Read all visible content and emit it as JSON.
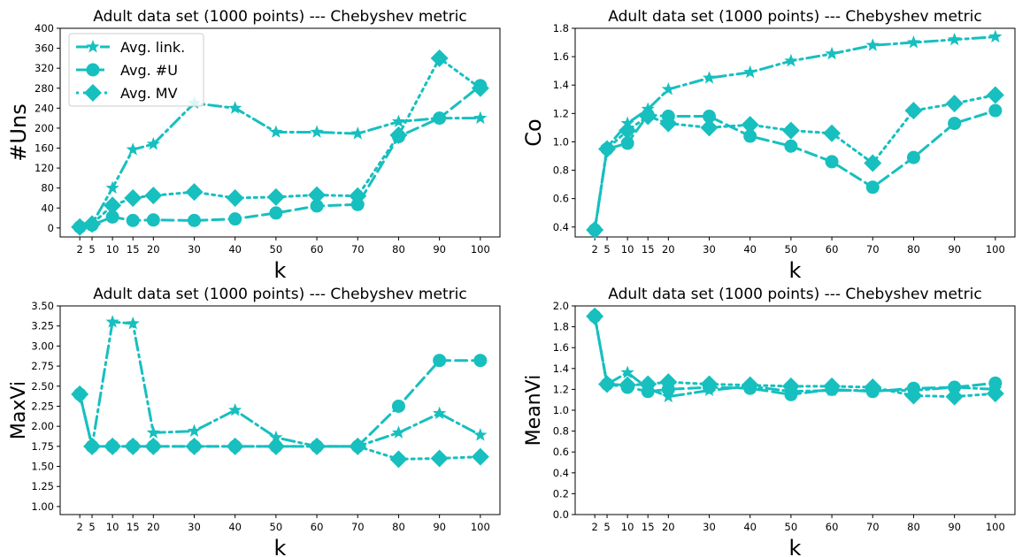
{
  "colors": {
    "series": "#17BFBF",
    "axis": "#000000",
    "background": "#ffffff"
  },
  "chart_data": [
    {
      "type": "line",
      "title": "Adult data set (1000 points) --- Chebyshev metric",
      "xlabel": "k",
      "ylabel": "#Uns",
      "x": [
        2,
        5,
        10,
        15,
        20,
        30,
        40,
        50,
        60,
        70,
        80,
        90,
        100
      ],
      "xticks": [
        2,
        5,
        10,
        15,
        20,
        30,
        40,
        50,
        60,
        70,
        80,
        90,
        100
      ],
      "yticks": [
        "0",
        "40",
        "80",
        "120",
        "160",
        "200",
        "240",
        "280",
        "320",
        "360",
        "400"
      ],
      "ylim": [
        -18,
        400
      ],
      "legend": "top-left",
      "grid": false,
      "series": [
        {
          "name": "Avg. link.",
          "linestyle": "dashdot",
          "marker": "star",
          "values": [
            2,
            8,
            80,
            157,
            168,
            250,
            240,
            192,
            192,
            189,
            213,
            220,
            220
          ]
        },
        {
          "name": "Avg. #U",
          "linestyle": "dashed",
          "marker": "circle",
          "values": [
            2,
            6,
            22,
            15,
            16,
            15,
            18,
            30,
            44,
            47,
            183,
            220,
            285
          ]
        },
        {
          "name": "Avg. MV",
          "linestyle": "dotted",
          "marker": "diamond",
          "values": [
            2,
            8,
            45,
            60,
            65,
            72,
            60,
            62,
            66,
            64,
            186,
            340,
            280
          ]
        }
      ]
    },
    {
      "type": "line",
      "title": "Adult data set (1000 points) --- Chebyshev metric",
      "xlabel": "k",
      "ylabel": "Co",
      "x": [
        2,
        5,
        10,
        15,
        20,
        30,
        40,
        50,
        60,
        70,
        80,
        90,
        100
      ],
      "xticks": [
        2,
        5,
        10,
        15,
        20,
        30,
        40,
        50,
        60,
        70,
        80,
        90,
        100
      ],
      "yticks": [
        "0.4",
        "0.6",
        "0.8",
        "1.0",
        "1.2",
        "1.4",
        "1.6",
        "1.8"
      ],
      "ylim": [
        0.33,
        1.8
      ],
      "grid": false,
      "series": [
        {
          "name": "Avg. link.",
          "linestyle": "dashdot",
          "marker": "star",
          "values": [
            0.38,
            0.96,
            1.13,
            1.23,
            1.37,
            1.45,
            1.49,
            1.57,
            1.62,
            1.68,
            1.7,
            1.72,
            1.74
          ]
        },
        {
          "name": "Avg. #U",
          "linestyle": "dashed",
          "marker": "circle",
          "values": [
            0.38,
            0.95,
            0.99,
            1.19,
            1.18,
            1.18,
            1.04,
            0.97,
            0.86,
            0.68,
            0.89,
            1.13,
            1.22
          ]
        },
        {
          "name": "Avg. MV",
          "linestyle": "dotted",
          "marker": "diamond",
          "values": [
            0.38,
            0.95,
            1.08,
            1.18,
            1.13,
            1.1,
            1.12,
            1.08,
            1.06,
            0.85,
            1.22,
            1.27,
            1.33
          ]
        }
      ]
    },
    {
      "type": "line",
      "title": "Adult data set (1000 points) --- Chebyshev metric",
      "xlabel": "k",
      "ylabel": "MaxVi",
      "x": [
        2,
        5,
        10,
        15,
        20,
        30,
        40,
        50,
        60,
        70,
        80,
        90,
        100
      ],
      "xticks": [
        2,
        5,
        10,
        15,
        20,
        30,
        40,
        50,
        60,
        70,
        80,
        90,
        100
      ],
      "yticks": [
        "1.00",
        "1.25",
        "1.50",
        "1.75",
        "2.00",
        "2.25",
        "2.50",
        "2.75",
        "3.00",
        "3.25",
        "3.50"
      ],
      "ylim": [
        0.9,
        3.5
      ],
      "grid": false,
      "series": [
        {
          "name": "Avg. link.",
          "linestyle": "dashdot",
          "marker": "star",
          "values": [
            2.4,
            1.75,
            3.3,
            3.28,
            1.92,
            1.94,
            2.2,
            1.86,
            1.75,
            1.75,
            1.92,
            2.16,
            1.89
          ]
        },
        {
          "name": "Avg. #U",
          "linestyle": "dashed",
          "marker": "circle",
          "values": [
            2.4,
            1.75,
            1.75,
            1.75,
            1.75,
            1.75,
            1.75,
            1.75,
            1.75,
            1.75,
            2.25,
            2.82,
            2.82
          ]
        },
        {
          "name": "Avg. MV",
          "linestyle": "dotted",
          "marker": "diamond",
          "values": [
            2.4,
            1.75,
            1.75,
            1.75,
            1.75,
            1.75,
            1.75,
            1.75,
            1.75,
            1.75,
            1.59,
            1.6,
            1.62
          ]
        }
      ]
    },
    {
      "type": "line",
      "title": "Adult data set (1000 points) --- Chebyshev metric",
      "xlabel": "k",
      "ylabel": "MeanVi",
      "x": [
        2,
        5,
        10,
        15,
        20,
        30,
        40,
        50,
        60,
        70,
        80,
        90,
        100
      ],
      "xticks": [
        2,
        5,
        10,
        15,
        20,
        30,
        40,
        50,
        60,
        70,
        80,
        90,
        100
      ],
      "yticks": [
        "0.0",
        "0.2",
        "0.4",
        "0.6",
        "0.8",
        "1.0",
        "1.2",
        "1.4",
        "1.6",
        "1.8",
        "2.0"
      ],
      "ylim": [
        0.0,
        2.0
      ],
      "grid": false,
      "series": [
        {
          "name": "Avg. link.",
          "linestyle": "dashdot",
          "marker": "star",
          "values": [
            1.9,
            1.25,
            1.36,
            1.21,
            1.13,
            1.19,
            1.23,
            1.18,
            1.19,
            1.19,
            1.19,
            1.22,
            1.2
          ]
        },
        {
          "name": "Avg. #U",
          "linestyle": "dashed",
          "marker": "circle",
          "values": [
            1.9,
            1.25,
            1.22,
            1.18,
            1.2,
            1.22,
            1.21,
            1.15,
            1.2,
            1.18,
            1.21,
            1.22,
            1.26
          ]
        },
        {
          "name": "Avg. MV",
          "linestyle": "dotted",
          "marker": "diamond",
          "values": [
            1.9,
            1.25,
            1.24,
            1.25,
            1.27,
            1.25,
            1.24,
            1.23,
            1.23,
            1.22,
            1.14,
            1.13,
            1.16
          ]
        }
      ]
    }
  ]
}
